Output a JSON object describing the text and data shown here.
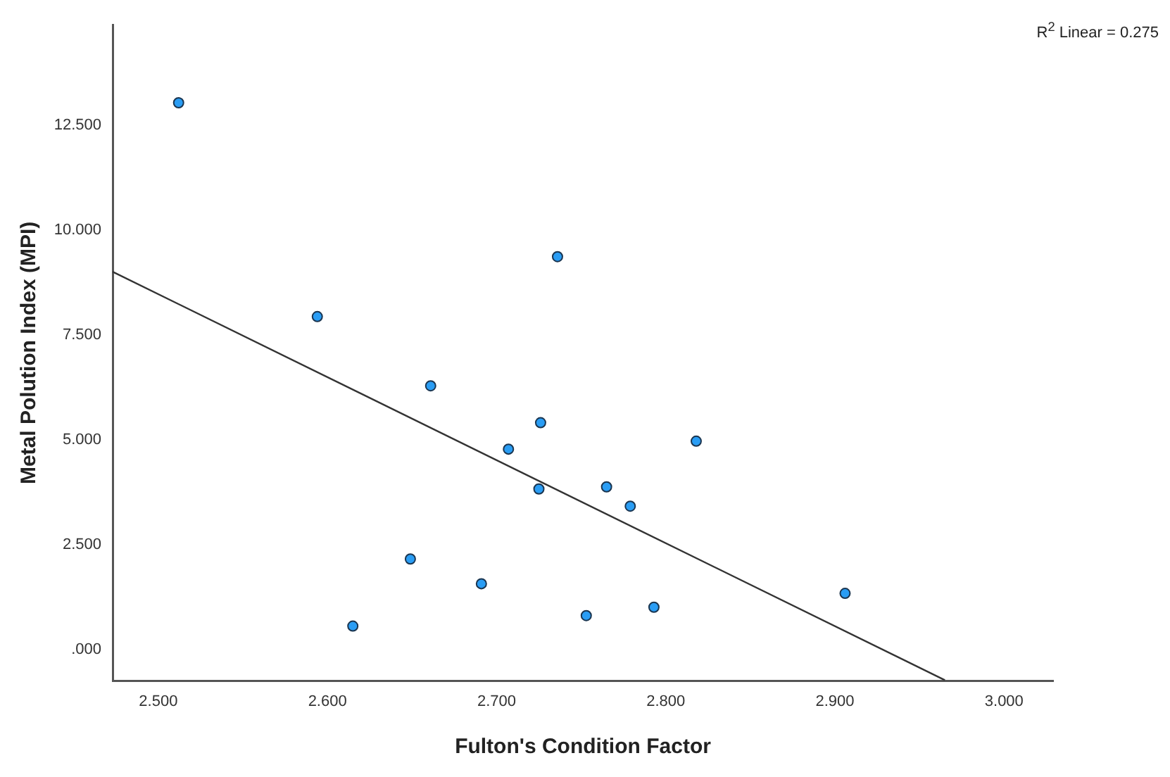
{
  "chart_data": {
    "type": "scatter",
    "xlabel": "Fulton's Condition Factor",
    "ylabel": "Metal Polution Index (MPI)",
    "annotations": [
      "R$^{2}$ Linear = 0.275"
    ],
    "xlim": [
      2.473,
      3.029
    ],
    "xticks": [
      {
        "value": 2.5,
        "label": "2.500"
      },
      {
        "value": 2.6,
        "label": "2.600"
      },
      {
        "value": 2.7,
        "label": "2.700"
      },
      {
        "value": 2.8,
        "label": "2.800"
      },
      {
        "value": 2.9,
        "label": "2.900"
      },
      {
        "value": 3.0,
        "label": "3.000"
      }
    ],
    "ylim": [
      -0.75,
      14.9
    ],
    "yticks": [
      {
        "value": 0,
        "label": ".000"
      },
      {
        "value": 2.5,
        "label": "2.500"
      },
      {
        "value": 5,
        "label": "5.000"
      },
      {
        "value": 7.5,
        "label": "7.500"
      },
      {
        "value": 10,
        "label": "10.000"
      },
      {
        "value": 12.5,
        "label": "12.500"
      }
    ],
    "grid": false,
    "legend": false,
    "series": [
      {
        "marker": "circle",
        "color": "#2a9df4",
        "x": [
          2.512,
          2.594,
          2.661,
          2.736,
          2.726,
          2.707,
          2.725,
          2.765,
          2.779,
          2.649,
          2.691,
          2.615,
          2.753,
          2.818,
          2.793,
          2.906
        ],
        "values": [
          13.04,
          7.94,
          6.29,
          9.37,
          5.41,
          4.78,
          3.83,
          3.88,
          3.42,
          2.16,
          1.57,
          0.56,
          0.81,
          4.97,
          1.01,
          1.34
        ]
      },
      {
        "type": "line",
        "color": "#333333",
        "line_style": "solid",
        "x": [
          2.473,
          2.965
        ],
        "values": [
          9.01,
          -0.73
        ]
      }
    ]
  }
}
